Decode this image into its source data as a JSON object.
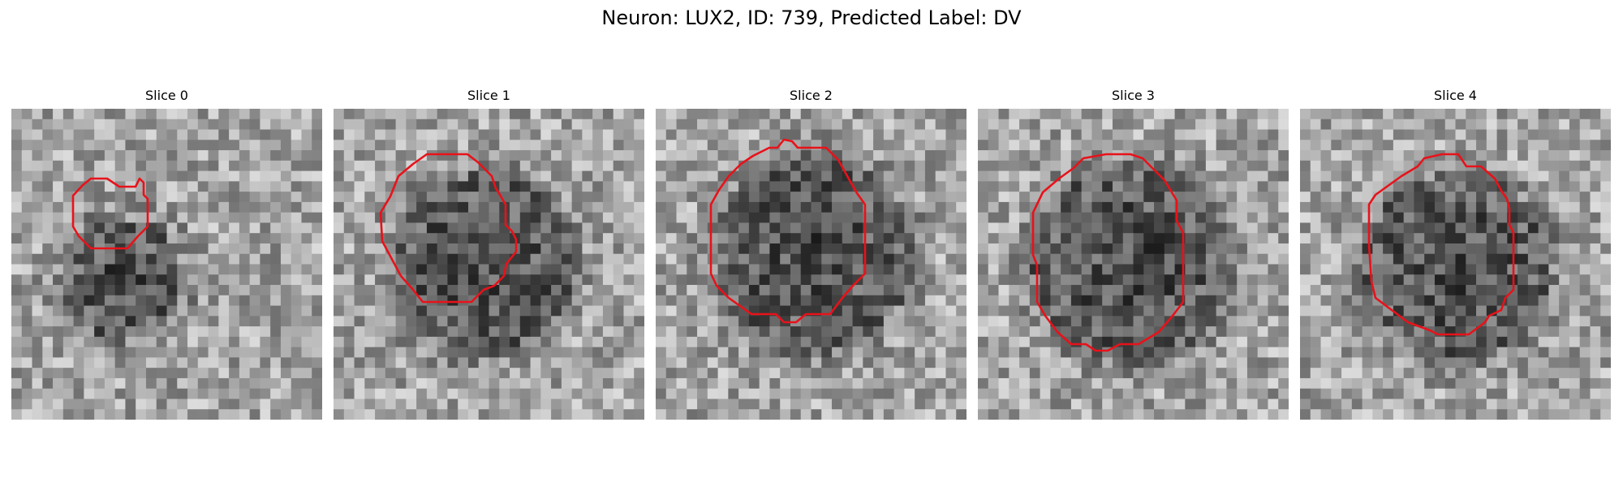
{
  "figure": {
    "title": "Neuron: LUX2, ID: 739, Predicted Label: DV"
  },
  "slices": [
    {
      "title": "Slice 0",
      "cells_dark_center": [
        0.36,
        0.55
      ],
      "cell_radius": 0.19
    },
    {
      "title": "Slice 1",
      "cells_dark_center": [
        0.48,
        0.5
      ],
      "cell_radius": 0.29
    },
    {
      "title": "Slice 2",
      "cells_dark_center": [
        0.5,
        0.47
      ],
      "cell_radius": 0.32
    },
    {
      "title": "Slice 3",
      "cells_dark_center": [
        0.5,
        0.5
      ],
      "cell_radius": 0.32
    },
    {
      "title": "Slice 4",
      "cells_dark_center": [
        0.51,
        0.51
      ],
      "cell_radius": 0.3
    }
  ],
  "colors": {
    "contour": "#e8121a",
    "background": "#ffffff"
  },
  "image": {
    "colormap": "grayscale",
    "grid_size": 30
  }
}
